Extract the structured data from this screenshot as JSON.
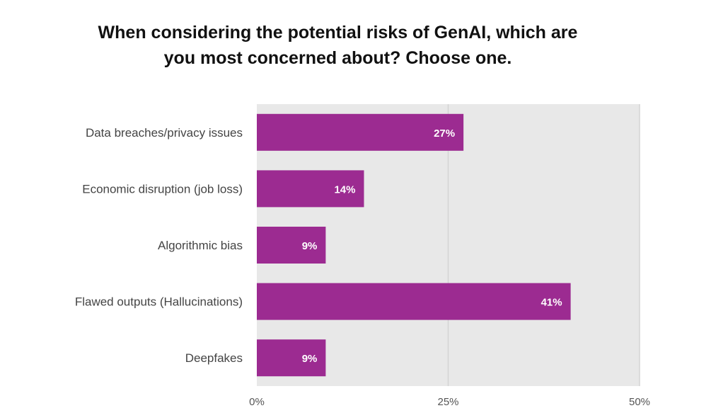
{
  "chart_data": {
    "type": "bar",
    "orientation": "horizontal",
    "title": "When considering the potential risks of GenAI, which are you most concerned about? Choose one.",
    "title_lines": [
      "When considering the potential risks of GenAI, which are",
      "you most concerned about? Choose one."
    ],
    "categories": [
      "Data breaches/privacy issues",
      "Economic disruption (job loss)",
      "Algorithmic bias",
      "Flawed outputs (Hallucinations)",
      "Deepfakes"
    ],
    "values": [
      27,
      14,
      9,
      41,
      9
    ],
    "data_labels": [
      "27%",
      "14%",
      "9%",
      "41%",
      "9%"
    ],
    "xlim": [
      0,
      50
    ],
    "x_ticks": [
      0,
      25,
      50
    ],
    "x_tick_labels": [
      "0%",
      "25%",
      "50%"
    ],
    "xlabel": "",
    "ylabel": "",
    "grid": true,
    "bar_color": "#9c2b91",
    "plot_background": "#e8e8e8"
  }
}
